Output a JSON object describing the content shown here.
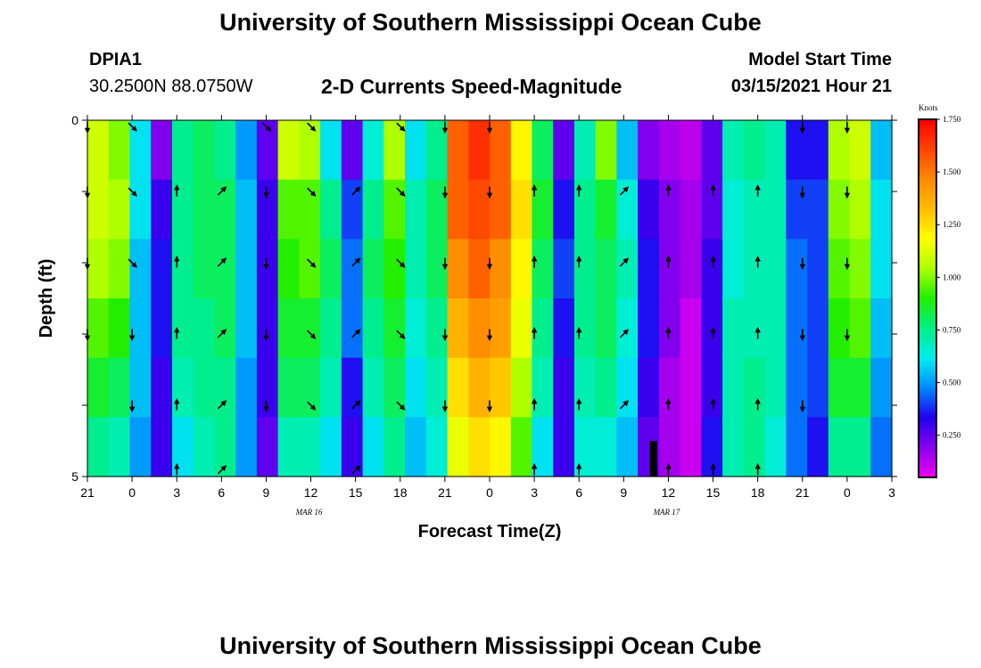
{
  "header": {
    "title_top": "University of Southern Mississippi Ocean Cube",
    "title_bottom": "University of Southern Mississippi Ocean Cube",
    "station_id": "DPIA1",
    "station_coords": "30.2500N 88.0750W",
    "plot_title": "2-D Currents Speed-Magnitude",
    "model_start_label": "Model Start Time",
    "model_start_value": "03/15/2021 Hour 21"
  },
  "colors": {
    "scale": [
      "#ee00ee",
      "#8800ee",
      "#2200ee",
      "#0088ff",
      "#00eeee",
      "#00ee88",
      "#22ee00",
      "#aaff00",
      "#ffff00",
      "#ffbb00",
      "#ff8800",
      "#ff4400",
      "#ff0000"
    ]
  },
  "chart_data": {
    "type": "heatmap",
    "title": "2-D Currents Speed-Magnitude",
    "xlabel": "Forecast Time(Z)",
    "ylabel": "Depth (ft)",
    "x_tick_labels": [
      "21",
      "0",
      "3",
      "6",
      "9",
      "12",
      "15",
      "18",
      "21",
      "0",
      "3",
      "6",
      "9",
      "12",
      "15",
      "18",
      "21",
      "0",
      "3"
    ],
    "x_range_hours": [
      0,
      54
    ],
    "date_labels": [
      {
        "text": "MAR 16",
        "hour": 15
      },
      {
        "text": "MAR 17",
        "hour": 39
      }
    ],
    "y_tick_labels": [
      {
        "value": 0,
        "text": "0"
      },
      {
        "value": 5,
        "text": "5"
      }
    ],
    "y_range": [
      0,
      5
    ],
    "colorbar": {
      "title": "Knots",
      "min": 0.05,
      "max": 1.75,
      "ticks": [
        "1.750",
        "1.500",
        "1.250",
        "1.000",
        "0.750",
        "0.500",
        "0.250"
      ]
    },
    "depth_levels": [
      0,
      1,
      2,
      3,
      4,
      5
    ],
    "speed_columns_knots": [
      [
        1.1,
        1.1,
        1.05,
        0.95,
        0.85,
        0.75
      ],
      [
        1.0,
        1.05,
        1.0,
        0.9,
        0.8,
        0.7
      ],
      [
        0.6,
        0.6,
        0.55,
        0.55,
        0.55,
        0.5
      ],
      [
        0.2,
        0.3,
        0.35,
        0.35,
        0.3,
        0.3
      ],
      [
        0.75,
        0.75,
        0.75,
        0.75,
        0.7,
        0.6
      ],
      [
        0.8,
        0.8,
        0.8,
        0.75,
        0.75,
        0.7
      ],
      [
        0.75,
        0.8,
        0.8,
        0.8,
        0.75,
        0.75
      ],
      [
        0.5,
        0.55,
        0.55,
        0.55,
        0.5,
        0.5
      ],
      [
        0.25,
        0.3,
        0.3,
        0.3,
        0.3,
        0.25
      ],
      [
        1.1,
        0.95,
        0.9,
        0.85,
        0.8,
        0.7
      ],
      [
        1.05,
        0.95,
        0.95,
        0.85,
        0.8,
        0.7
      ],
      [
        0.6,
        0.75,
        0.8,
        0.75,
        0.7,
        0.6
      ],
      [
        0.25,
        0.4,
        0.45,
        0.45,
        0.35,
        0.3
      ],
      [
        0.65,
        0.75,
        0.8,
        0.75,
        0.7,
        0.6
      ],
      [
        1.05,
        0.95,
        0.9,
        0.85,
        0.8,
        0.75
      ],
      [
        0.6,
        0.7,
        0.7,
        0.65,
        0.6,
        0.55
      ],
      [
        0.75,
        0.8,
        0.8,
        0.75,
        0.7,
        0.65
      ],
      [
        1.55,
        1.55,
        1.45,
        1.35,
        1.25,
        1.15
      ],
      [
        1.65,
        1.6,
        1.55,
        1.45,
        1.35,
        1.25
      ],
      [
        1.55,
        1.55,
        1.45,
        1.4,
        1.3,
        1.2
      ],
      [
        1.2,
        1.25,
        1.2,
        1.15,
        1.05,
        0.95
      ],
      [
        0.8,
        0.85,
        0.8,
        0.75,
        0.7,
        0.6
      ],
      [
        0.25,
        0.35,
        0.4,
        0.35,
        0.3,
        0.3
      ],
      [
        0.7,
        0.75,
        0.75,
        0.75,
        0.7,
        0.65
      ],
      [
        1.0,
        0.85,
        0.8,
        0.8,
        0.75,
        0.65
      ],
      [
        0.55,
        0.65,
        0.7,
        0.65,
        0.6,
        0.55
      ],
      [
        0.2,
        0.3,
        0.35,
        0.35,
        0.3,
        0.25
      ],
      [
        0.15,
        0.2,
        0.2,
        0.2,
        0.15,
        0.15
      ],
      [
        0.12,
        0.15,
        0.15,
        0.1,
        0.1,
        0.1
      ],
      [
        0.25,
        0.25,
        0.3,
        0.3,
        0.3,
        0.35
      ],
      [
        0.7,
        0.65,
        0.65,
        0.7,
        0.7,
        0.7
      ],
      [
        0.75,
        0.7,
        0.7,
        0.7,
        0.75,
        0.75
      ],
      [
        0.7,
        0.7,
        0.7,
        0.7,
        0.7,
        0.65
      ],
      [
        0.35,
        0.4,
        0.45,
        0.45,
        0.45,
        0.45
      ],
      [
        0.35,
        0.4,
        0.4,
        0.4,
        0.4,
        0.35
      ],
      [
        1.05,
        1.0,
        0.95,
        0.9,
        0.85,
        0.75
      ],
      [
        1.1,
        1.05,
        1.0,
        0.95,
        0.85,
        0.75
      ],
      [
        0.55,
        0.6,
        0.6,
        0.55,
        0.5,
        0.45
      ]
    ],
    "current_vectors": [
      {
        "hour": 0,
        "rows": [
          "S",
          "S",
          "S",
          "S",
          "",
          ""
        ]
      },
      {
        "hour": 3,
        "rows": [
          "SE",
          "SE",
          "SE",
          "S",
          "S",
          ""
        ]
      },
      {
        "hour": 6,
        "rows": [
          "",
          "N",
          "N",
          "N",
          "N",
          "N"
        ]
      },
      {
        "hour": 9,
        "rows": [
          "",
          "NE",
          "NE",
          "NE",
          "NE",
          "NE"
        ]
      },
      {
        "hour": 12,
        "rows": [
          "SE",
          "S",
          "S",
          "S",
          "S",
          ""
        ]
      },
      {
        "hour": 15,
        "rows": [
          "SE",
          "SE",
          "SE",
          "SE",
          "SE",
          ""
        ]
      },
      {
        "hour": 18,
        "rows": [
          "",
          "NE",
          "NE",
          "NE",
          "NE",
          "NE"
        ]
      },
      {
        "hour": 21,
        "rows": [
          "SE",
          "SE",
          "SE",
          "SE",
          "SE",
          ""
        ]
      },
      {
        "hour": 24,
        "rows": [
          "S",
          "S",
          "S",
          "S",
          "S",
          ""
        ]
      },
      {
        "hour": 27,
        "rows": [
          "S",
          "S",
          "S",
          "S",
          "S",
          ""
        ]
      },
      {
        "hour": 30,
        "rows": [
          "",
          "N",
          "N",
          "N",
          "N",
          "N"
        ]
      },
      {
        "hour": 33,
        "rows": [
          "",
          "N",
          "N",
          "N",
          "N",
          "N"
        ]
      },
      {
        "hour": 36,
        "rows": [
          "",
          "NE",
          "NE",
          "NE",
          "NE",
          ""
        ]
      },
      {
        "hour": 39,
        "rows": [
          "",
          "N",
          "N",
          "N",
          "N",
          "N"
        ]
      },
      {
        "hour": 42,
        "rows": [
          "",
          "N",
          "N",
          "N",
          "N",
          "N"
        ]
      },
      {
        "hour": 45,
        "rows": [
          "",
          "N",
          "N",
          "N",
          "N",
          "N"
        ]
      },
      {
        "hour": 48,
        "rows": [
          "S",
          "S",
          "S",
          "S",
          "S",
          ""
        ]
      },
      {
        "hour": 51,
        "rows": [
          "S",
          "S",
          "S",
          "S",
          "",
          ""
        ]
      }
    ],
    "missing_marker": {
      "hour": 38,
      "depth_from": 4.5,
      "depth_to": 5
    }
  }
}
